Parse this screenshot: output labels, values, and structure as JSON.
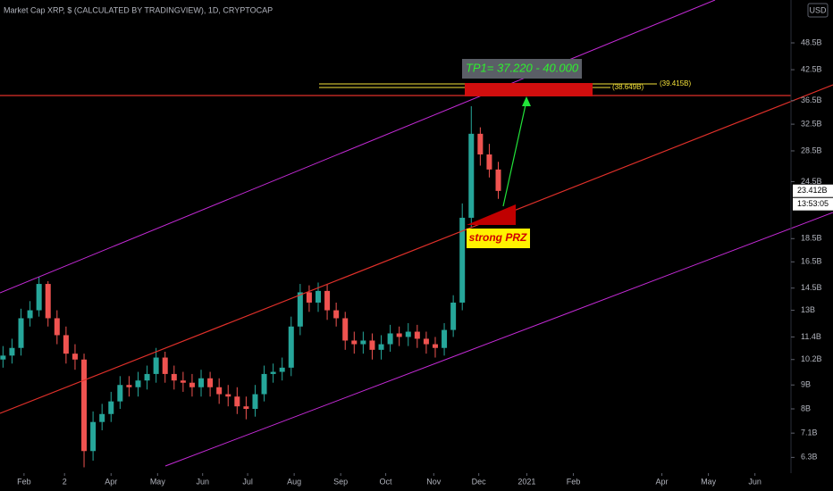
{
  "chart_data": {
    "type": "candlestick",
    "title": "Market Cap XRP, $ (CALCULATED BY TRADINGVIEW), 1D, CRYPTOCAP",
    "currency": "USD",
    "up_color": "#26a69a",
    "down_color": "#ef5350",
    "log_scale": true,
    "x": [
      -14,
      -8,
      -2,
      4,
      10,
      16,
      22,
      28,
      34,
      40,
      46,
      52,
      58,
      64,
      70,
      76,
      82,
      88,
      94,
      100,
      106,
      112,
      118,
      124,
      130,
      136,
      142,
      148,
      154,
      160,
      166,
      172,
      178,
      184,
      190,
      196,
      202,
      208,
      214,
      220,
      226,
      232,
      238,
      244,
      250,
      256,
      262,
      268,
      274,
      280,
      286,
      292,
      298,
      304,
      310,
      316
    ],
    "open": [
      10.2,
      10.4,
      10.8,
      12.5,
      13,
      14.8,
      12.5,
      11.5,
      10.5,
      10.2,
      6.5,
      7.5,
      7.8,
      8.3,
      9,
      8.9,
      9.2,
      9.5,
      10.3,
      9.5,
      9.2,
      9.1,
      8.9,
      9.3,
      8.9,
      8.6,
      8.5,
      8.1,
      8.0,
      8.6,
      9.5,
      9.6,
      9.8,
      12,
      14.2,
      13.5,
      14.3,
      13.0,
      12.5,
      11.2,
      11.0,
      11.2,
      10.7,
      11.0,
      11.6,
      11.4,
      11.7,
      11.3,
      11.0,
      10.8,
      11.8,
      13.5,
      20.5,
      31,
      28,
      26
    ],
    "high": [
      10.9,
      11.3,
      13.1,
      13.6,
      15.3,
      15.0,
      13.0,
      12.0,
      11.0,
      10.5,
      7.9,
      8.2,
      8.7,
      9.4,
      9.4,
      9.6,
      9.9,
      10.8,
      10.6,
      9.9,
      9.6,
      9.5,
      9.7,
      9.6,
      9.3,
      9.0,
      8.9,
      8.5,
      9.0,
      9.9,
      10.0,
      10.3,
      12.6,
      14.8,
      14.7,
      14.9,
      14.8,
      13.5,
      12.9,
      11.7,
      11.7,
      11.6,
      11.5,
      12.1,
      12.0,
      12.2,
      12.1,
      11.7,
      11.4,
      12.2,
      14.0,
      22,
      35.5,
      32,
      29.5,
      27
    ],
    "low": [
      9.8,
      10.0,
      10.4,
      12.0,
      12.6,
      12.0,
      11.0,
      10.0,
      9.7,
      6.0,
      6.2,
      7.2,
      7.5,
      8.0,
      8.5,
      8.5,
      8.8,
      9.1,
      9.1,
      8.8,
      8.7,
      8.5,
      8.5,
      8.5,
      8.2,
      8.1,
      7.8,
      7.6,
      7.7,
      8.3,
      9.1,
      9.2,
      9.4,
      11.5,
      12.9,
      12.9,
      12.4,
      12.0,
      10.7,
      10.5,
      10.5,
      10.2,
      10.2,
      10.6,
      10.9,
      10.9,
      10.8,
      10.5,
      10.3,
      10.4,
      11.4,
      13.0,
      19.5,
      26.5,
      25,
      22.5
    ],
    "close": [
      10.4,
      10.8,
      12.5,
      13,
      14.8,
      12.5,
      11.5,
      10.5,
      10.2,
      6.5,
      7.5,
      7.8,
      8.3,
      9,
      8.9,
      9.2,
      9.5,
      10.3,
      9.5,
      9.2,
      9.1,
      8.9,
      9.3,
      8.9,
      8.6,
      8.5,
      8.1,
      8.0,
      8.6,
      9.5,
      9.6,
      9.8,
      12,
      14.2,
      13.5,
      14.3,
      13.0,
      12.5,
      11.2,
      11.0,
      11.2,
      10.7,
      11.0,
      11.6,
      11.4,
      11.7,
      11.3,
      11.0,
      10.8,
      11.8,
      13.5,
      20.5,
      31,
      28,
      26,
      23.4
    ],
    "xlim": [
      -16,
      514
    ],
    "xticks": [
      {
        "value": 0,
        "label": "Feb"
      },
      {
        "value": 27,
        "label": "2"
      },
      {
        "value": 58,
        "label": "Apr"
      },
      {
        "value": 89,
        "label": "May"
      },
      {
        "value": 119,
        "label": "Jun"
      },
      {
        "value": 149,
        "label": "Jul"
      },
      {
        "value": 180,
        "label": "Aug"
      },
      {
        "value": 211,
        "label": "Sep"
      },
      {
        "value": 241,
        "label": "Oct"
      },
      {
        "value": 273,
        "label": "Nov"
      },
      {
        "value": 303,
        "label": "Dec"
      },
      {
        "value": 335,
        "label": "2021"
      },
      {
        "value": 366,
        "label": "Feb"
      },
      {
        "value": 425,
        "label": "Apr"
      },
      {
        "value": 456,
        "label": "May"
      },
      {
        "value": 487,
        "label": "Jun"
      }
    ],
    "ylim": [
      5.83,
      59.9
    ],
    "yticks": [
      {
        "value": 48.5,
        "label": "48.5B"
      },
      {
        "value": 42.5,
        "label": "42.5B"
      },
      {
        "value": 36.5,
        "label": "36.5B"
      },
      {
        "value": 32.5,
        "label": "32.5B"
      },
      {
        "value": 28.5,
        "label": "28.5B"
      },
      {
        "value": 24.5,
        "label": "24.5B"
      },
      {
        "value": 18.5,
        "label": "18.5B"
      },
      {
        "value": 16.5,
        "label": "16.5B"
      },
      {
        "value": 14.5,
        "label": "14.5B"
      },
      {
        "value": 13,
        "label": "13B"
      },
      {
        "value": 11.4,
        "label": "11.4B"
      },
      {
        "value": 10.2,
        "label": "10.2B"
      },
      {
        "value": 9,
        "label": "9B"
      },
      {
        "value": 8,
        "label": "8B"
      },
      {
        "value": 7.1,
        "label": "7.1B"
      },
      {
        "value": 6.3,
        "label": "6.3B"
      }
    ],
    "last_price": {
      "value": 23.412,
      "label": "23.412B"
    },
    "countdown": "13:53:05",
    "annotations": {
      "target": "TP1= 37.220 - 40.000",
      "zone": "strong PRZ",
      "level_low": "(38.649B)",
      "level_high": "(39.415B)"
    }
  }
}
